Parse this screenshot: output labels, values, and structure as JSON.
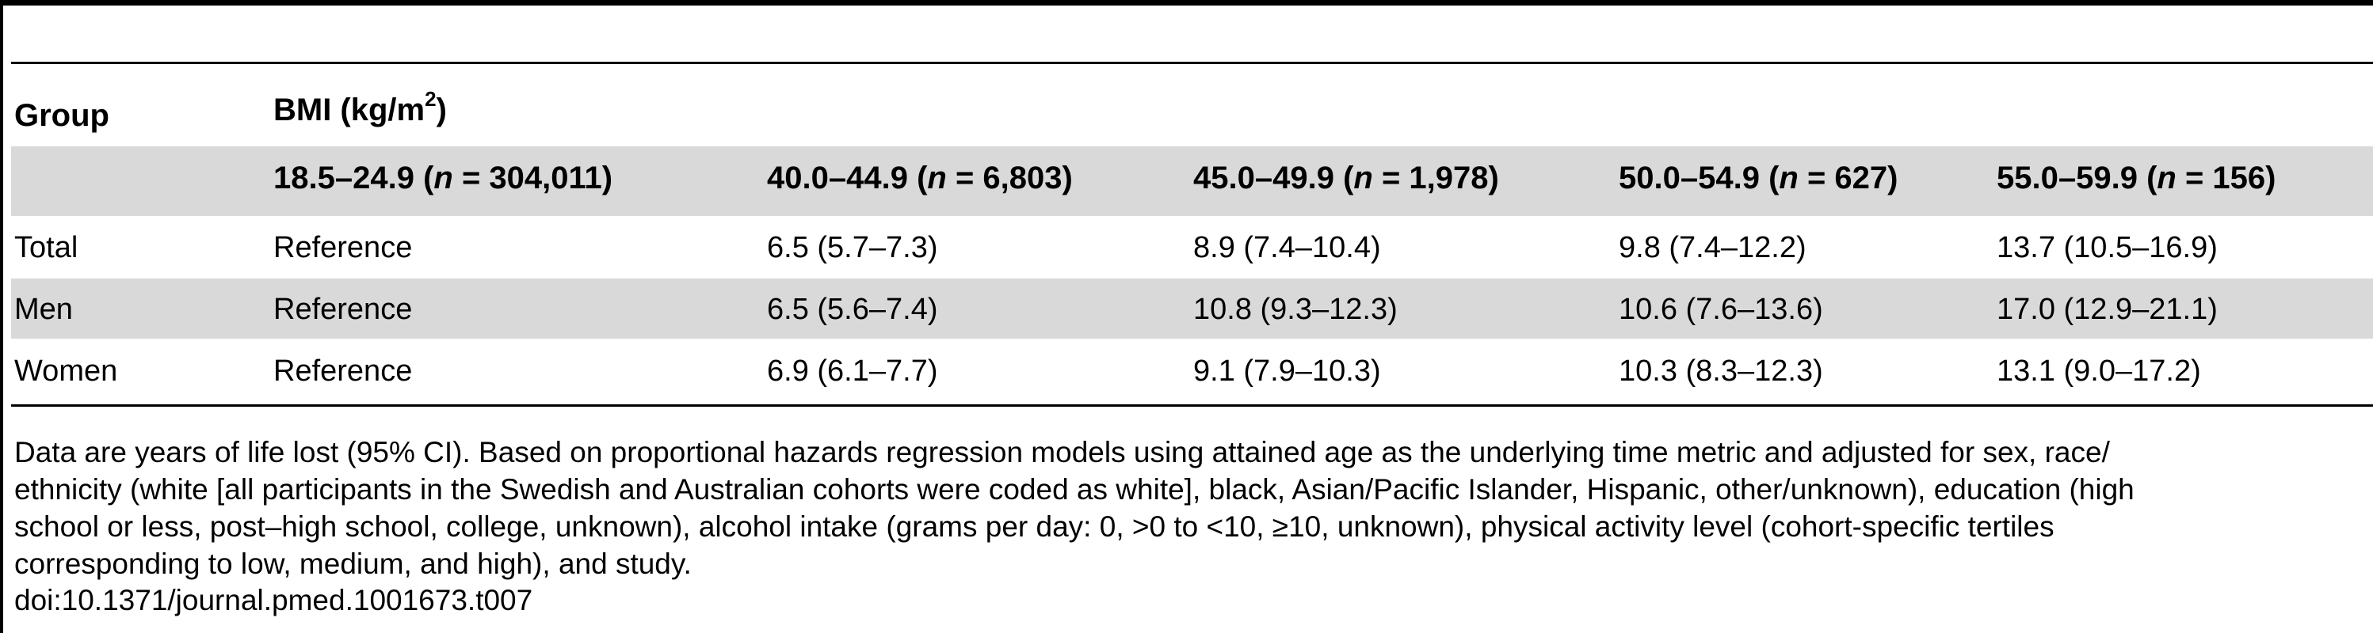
{
  "table": {
    "group_header": "Group",
    "bmi_header": "BMI (kg/m",
    "bmi_superscript": "2",
    "bmi_header_close": ")",
    "columns": [
      {
        "range": "18.5–24.9 (",
        "n_label": "n",
        "n_value": " = 304,011)"
      },
      {
        "range": "40.0–44.9 (",
        "n_label": "n",
        "n_value": " = 6,803)"
      },
      {
        "range": "45.0–49.9 (",
        "n_label": "n",
        "n_value": " = 1,978)"
      },
      {
        "range": "50.0–54.9 (",
        "n_label": "n",
        "n_value": " = 627)"
      },
      {
        "range": "55.0–59.9 (",
        "n_label": "n",
        "n_value": " = 156)"
      }
    ],
    "rows": [
      {
        "group": "Total",
        "values": [
          "Reference",
          "6.5 (5.7–7.3)",
          "8.9 (7.4–10.4)",
          "9.8 (7.4–12.2)",
          "13.7 (10.5–16.9)"
        ]
      },
      {
        "group": "Men",
        "values": [
          "Reference",
          "6.5 (5.6–7.4)",
          "10.8 (9.3–12.3)",
          "10.6 (7.6–13.6)",
          "17.0 (12.9–21.1)"
        ]
      },
      {
        "group": "Women",
        "values": [
          "Reference",
          "6.9 (6.1–7.7)",
          "9.1 (7.9–10.3)",
          "10.3 (8.3–12.3)",
          "13.1 (9.0–17.2)"
        ]
      }
    ]
  },
  "footnote": {
    "line1": "Data are years of life lost (95% CI). Based on proportional hazards regression models using attained age as the underlying time metric and adjusted for sex, race/",
    "line2": "ethnicity (white [all participants in the Swedish and Australian cohorts were coded as white], black, Asian/Pacific Islander, Hispanic, other/unknown), education (high",
    "line3": "school or less, post–high school, college, unknown), alcohol intake (grams per day: 0, >0 to <10, ≥10, unknown), physical activity level (cohort-specific tertiles",
    "line4": "corresponding to low, medium, and high), and study.",
    "doi": "doi:10.1371/journal.pmed.1001673.t007"
  },
  "colors": {
    "shade": "#d9d9d9",
    "rule": "#000000"
  }
}
